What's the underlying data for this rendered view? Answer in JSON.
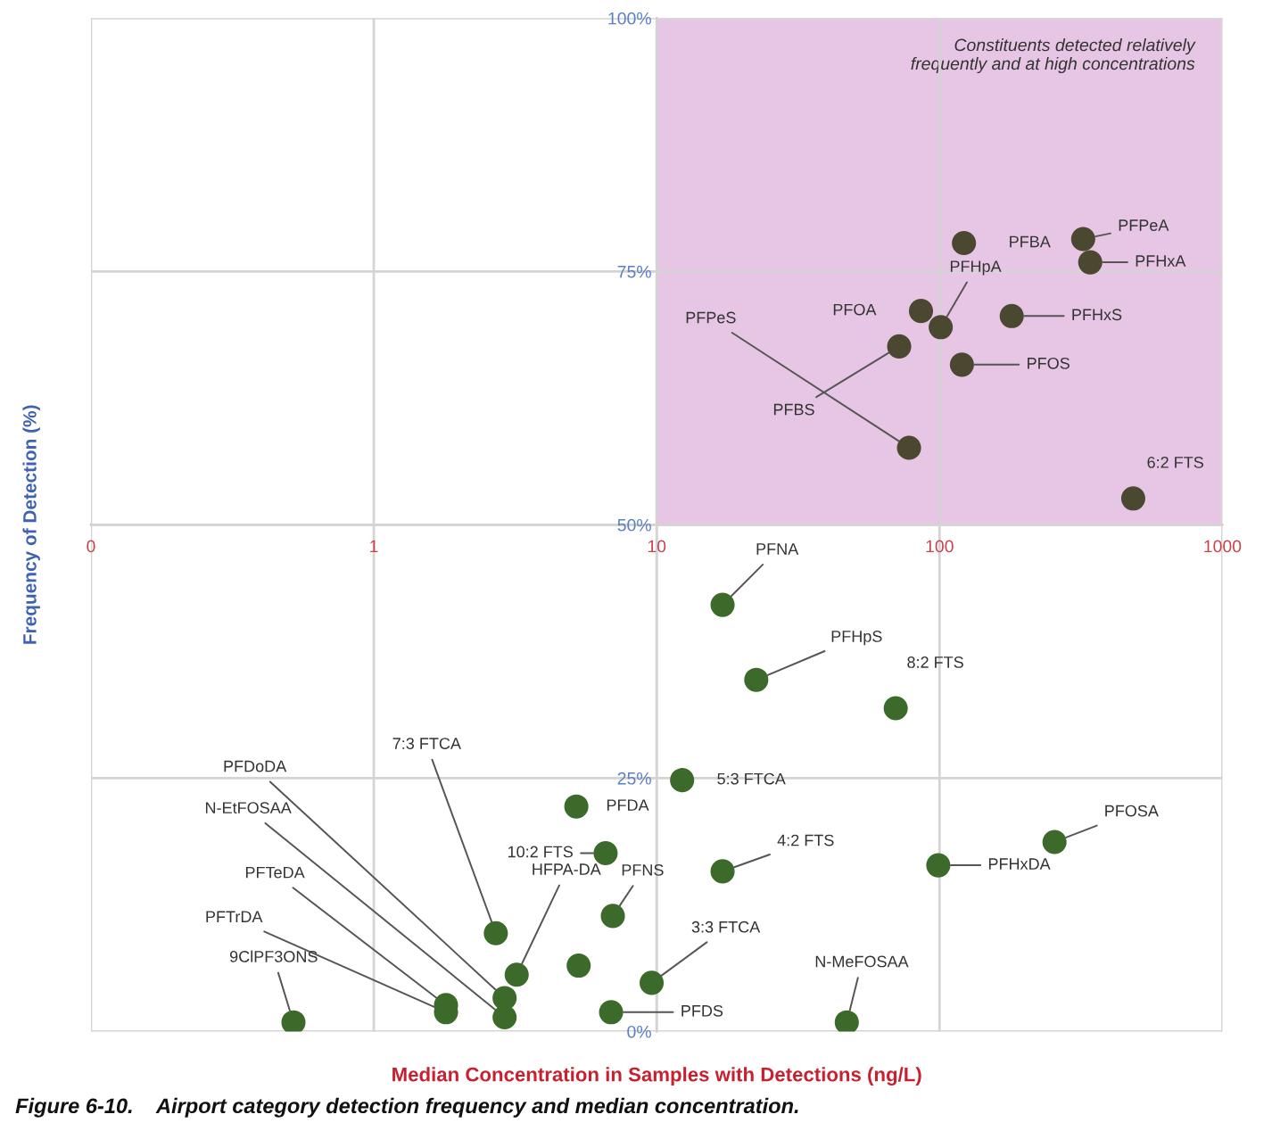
{
  "chart_data": {
    "type": "scatter",
    "xlabel": "Median Concentration in Samples with Detections (ng/L)",
    "ylabel": "Frequency of Detection (%)",
    "log": "x",
    "xlim": [
      0.1,
      1000
    ],
    "xticks": [
      {
        "value": 0.1,
        "label": "0"
      },
      1,
      10,
      100,
      1000
    ],
    "ylim": [
      0,
      100
    ],
    "yticks": [
      {
        "value": 0,
        "label": "0%"
      },
      {
        "value": 25,
        "label": "25%"
      },
      {
        "value": 50,
        "label": "50%"
      },
      {
        "value": 75,
        "label": "75%"
      },
      {
        "value": 100,
        "label": "100%"
      }
    ],
    "grid": true,
    "marker": "circle",
    "series": [
      {
        "color": "#4a4830",
        "x": [
          122,
          322,
          341,
          86,
          101,
          180,
          72,
          120,
          78,
          484
        ],
        "values": [
          77.8,
          78.2,
          75.9,
          71.1,
          69.5,
          70.6,
          67.6,
          65.8,
          57.6,
          52.6
        ]
      },
      {
        "color": "#3c6a2a",
        "x": [
          17.1,
          22.5,
          70,
          12.3,
          5.2,
          6.6,
          17.1,
          99,
          255,
          7.0,
          5.3,
          9.6,
          6.9,
          47,
          2.7,
          3.2,
          2.9,
          2.9,
          1.8,
          1.8,
          0.52
        ],
        "values": [
          42.1,
          34.7,
          31.9,
          24.8,
          22.2,
          17.6,
          15.8,
          16.4,
          18.7,
          11.4,
          6.5,
          4.8,
          1.9,
          0.9,
          9.7,
          5.6,
          3.3,
          1.4,
          2.6,
          1.9,
          0.9
        ]
      }
    ],
    "annotations": [
      "Constituents detected relatively\nfrequently and at high concentrations",
      {
        "text": "PFBA",
        "x": 122,
        "y": 77.8
      },
      {
        "text": "PFPeA",
        "x": 322,
        "y": 78.2
      },
      {
        "text": "PFHxA",
        "x": 341,
        "y": 75.9
      },
      {
        "text": "PFOA",
        "x": 86,
        "y": 71.1
      },
      {
        "text": "PFHpA",
        "x": 101,
        "y": 69.5
      },
      {
        "text": "PFHxS",
        "x": 180,
        "y": 70.6
      },
      {
        "text": "PFBS",
        "x": 72,
        "y": 67.6
      },
      {
        "text": "PFOS",
        "x": 120,
        "y": 65.8
      },
      {
        "text": "PFPeS",
        "x": 78,
        "y": 57.6
      },
      {
        "text": "6:2 FTS",
        "x": 484,
        "y": 52.6
      },
      {
        "text": "PFNA",
        "x": 17.1,
        "y": 42.1
      },
      {
        "text": "PFHpS",
        "x": 22.5,
        "y": 34.7
      },
      {
        "text": "8:2 FTS",
        "x": 70,
        "y": 31.9
      },
      {
        "text": "5:3 FTCA",
        "x": 12.3,
        "y": 24.8
      },
      {
        "text": "PFDA",
        "x": 5.2,
        "y": 22.2
      },
      {
        "text": "10:2 FTS",
        "x": 6.6,
        "y": 17.6
      },
      {
        "text": "4:2 FTS",
        "x": 17.1,
        "y": 15.8
      },
      {
        "text": "PFHxDA",
        "x": 99,
        "y": 16.4
      },
      {
        "text": "PFOSA",
        "x": 255,
        "y": 18.7
      },
      {
        "text": "PFNS",
        "x": 7.0,
        "y": 11.4
      },
      {
        "text": "3:3 FTCA",
        "x": 9.6,
        "y": 4.8
      },
      {
        "text": "PFDS",
        "x": 6.9,
        "y": 1.9
      },
      {
        "text": "N-MeFOSAA",
        "x": 47,
        "y": 0.9
      },
      {
        "text": "7:3 FTCA",
        "x": 2.7,
        "y": 9.7
      },
      {
        "text": "HFPA-DA",
        "x": 3.2,
        "y": 5.6
      },
      {
        "text": "PFDoDA",
        "x": 2.9,
        "y": 3.3
      },
      {
        "text": "N-EtFOSAA",
        "x": 2.9,
        "y": 1.4
      },
      {
        "text": "PFTeDA",
        "x": 1.8,
        "y": 2.6
      },
      {
        "text": "PFTrDA",
        "x": 1.8,
        "y": 1.9
      },
      {
        "text": "9ClPF3ONS",
        "x": 0.52,
        "y": 0.9
      },
      "Figure 6-10.    Airport category detection frequency and median concentration."
    ]
  }
}
